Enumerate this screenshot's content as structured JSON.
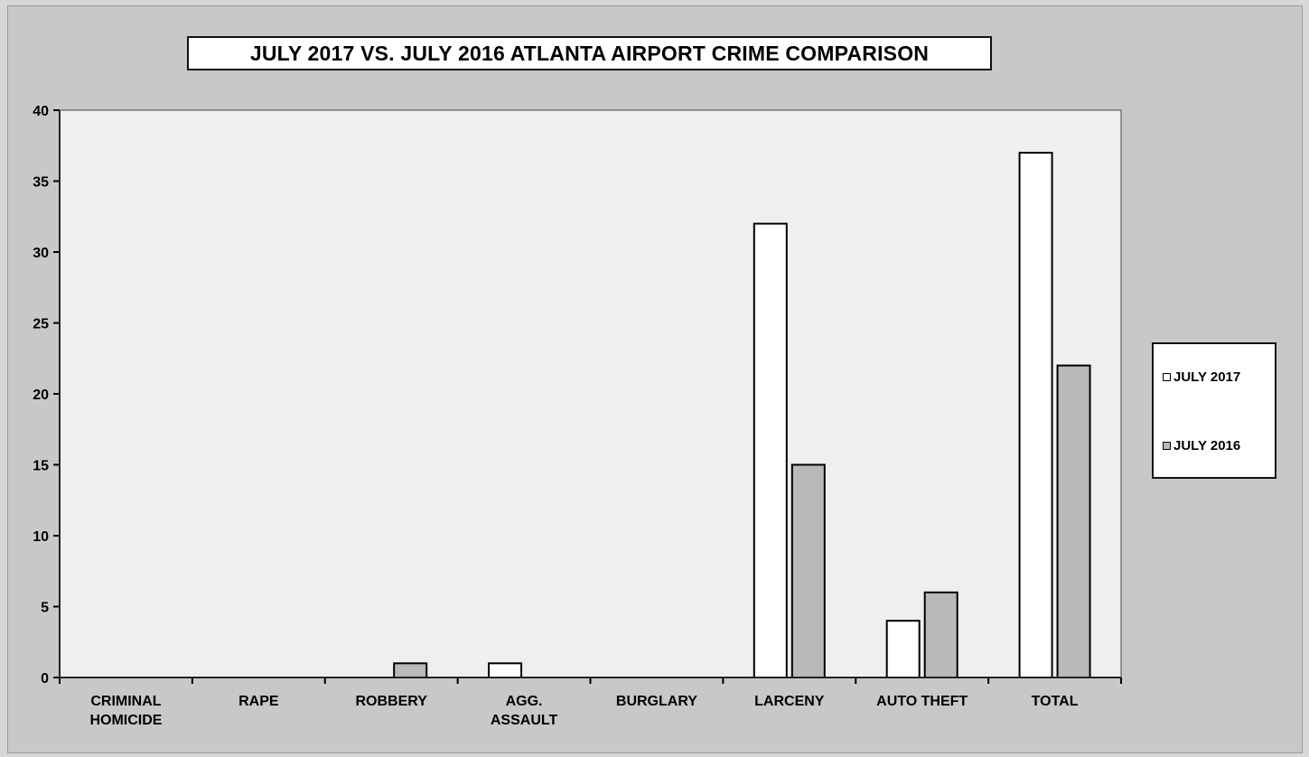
{
  "chart_data": {
    "type": "bar",
    "title": "JULY 2017 VS. JULY 2016 ATLANTA AIRPORT CRIME COMPARISON",
    "categories": [
      "CRIMINAL HOMICIDE",
      "RAPE",
      "ROBBERY",
      "AGG. ASSAULT",
      "BURGLARY",
      "LARCENY",
      "AUTO THEFT",
      "TOTAL"
    ],
    "category_lines": [
      [
        "CRIMINAL",
        "HOMICIDE"
      ],
      [
        "RAPE"
      ],
      [
        "ROBBERY"
      ],
      [
        "AGG.",
        "ASSAULT"
      ],
      [
        "BURGLARY"
      ],
      [
        "LARCENY"
      ],
      [
        "AUTO THEFT"
      ],
      [
        "TOTAL"
      ]
    ],
    "series": [
      {
        "name": "JULY 2017",
        "color": "#ffffff",
        "values": [
          0,
          0,
          0,
          1,
          0,
          32,
          4,
          37
        ]
      },
      {
        "name": "JULY 2016",
        "color": "#b9b9b9",
        "values": [
          0,
          0,
          1,
          0,
          0,
          15,
          6,
          22
        ]
      }
    ],
    "ylim": [
      0,
      40
    ],
    "yticks": [
      0,
      5,
      10,
      15,
      20,
      25,
      30,
      35,
      40
    ],
    "xlabel": "",
    "ylabel": "",
    "grid": false,
    "legend": "right",
    "plot_background": "#efefef"
  }
}
